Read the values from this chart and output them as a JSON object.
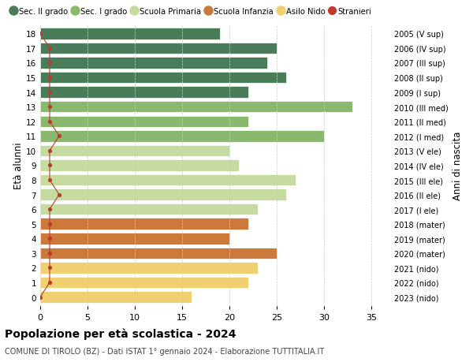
{
  "ages": [
    18,
    17,
    16,
    15,
    14,
    13,
    12,
    11,
    10,
    9,
    8,
    7,
    6,
    5,
    4,
    3,
    2,
    1,
    0
  ],
  "years_labels": [
    "2005 (V sup)",
    "2006 (IV sup)",
    "2007 (III sup)",
    "2008 (II sup)",
    "2009 (I sup)",
    "2010 (III med)",
    "2011 (II med)",
    "2012 (I med)",
    "2013 (V ele)",
    "2014 (IV ele)",
    "2015 (III ele)",
    "2016 (II ele)",
    "2017 (I ele)",
    "2018 (mater)",
    "2019 (mater)",
    "2020 (mater)",
    "2021 (nido)",
    "2022 (nido)",
    "2023 (nido)"
  ],
  "bar_values": [
    19,
    25,
    24,
    26,
    22,
    33,
    22,
    30,
    20,
    21,
    27,
    26,
    23,
    22,
    20,
    25,
    23,
    22,
    16
  ],
  "bar_colors": [
    "#4a7c59",
    "#4a7c59",
    "#4a7c59",
    "#4a7c59",
    "#4a7c59",
    "#8ab86e",
    "#8ab86e",
    "#8ab86e",
    "#c5dba0",
    "#c5dba0",
    "#c5dba0",
    "#c5dba0",
    "#c5dba0",
    "#cc7a3c",
    "#cc7a3c",
    "#cc7a3c",
    "#f0d070",
    "#f0d070",
    "#f0d070"
  ],
  "stranieri_values": [
    0,
    1,
    1,
    1,
    1,
    1,
    1,
    2,
    1,
    1,
    1,
    2,
    1,
    1,
    1,
    1,
    1,
    1,
    0
  ],
  "legend_labels": [
    "Sec. II grado",
    "Sec. I grado",
    "Scuola Primaria",
    "Scuola Infanzia",
    "Asilo Nido",
    "Stranieri"
  ],
  "legend_colors": [
    "#4a7c59",
    "#8ab86e",
    "#c5dba0",
    "#cc7a3c",
    "#f0d070",
    "#c0392b"
  ],
  "title": "Popolazione per età scolastica - 2024",
  "subtitle": "COMUNE DI TIROLO (BZ) - Dati ISTAT 1° gennaio 2024 - Elaborazione TUTTITALIA.IT",
  "ylabel": "Età alunni",
  "right_label": "Anni di nascita",
  "xlim": [
    0,
    37
  ],
  "xticks": [
    0,
    5,
    10,
    15,
    20,
    25,
    30,
    35
  ],
  "bar_height": 0.78,
  "stranieri_color": "#c0392b",
  "background_color": "#ffffff",
  "grid_color": "#cccccc"
}
